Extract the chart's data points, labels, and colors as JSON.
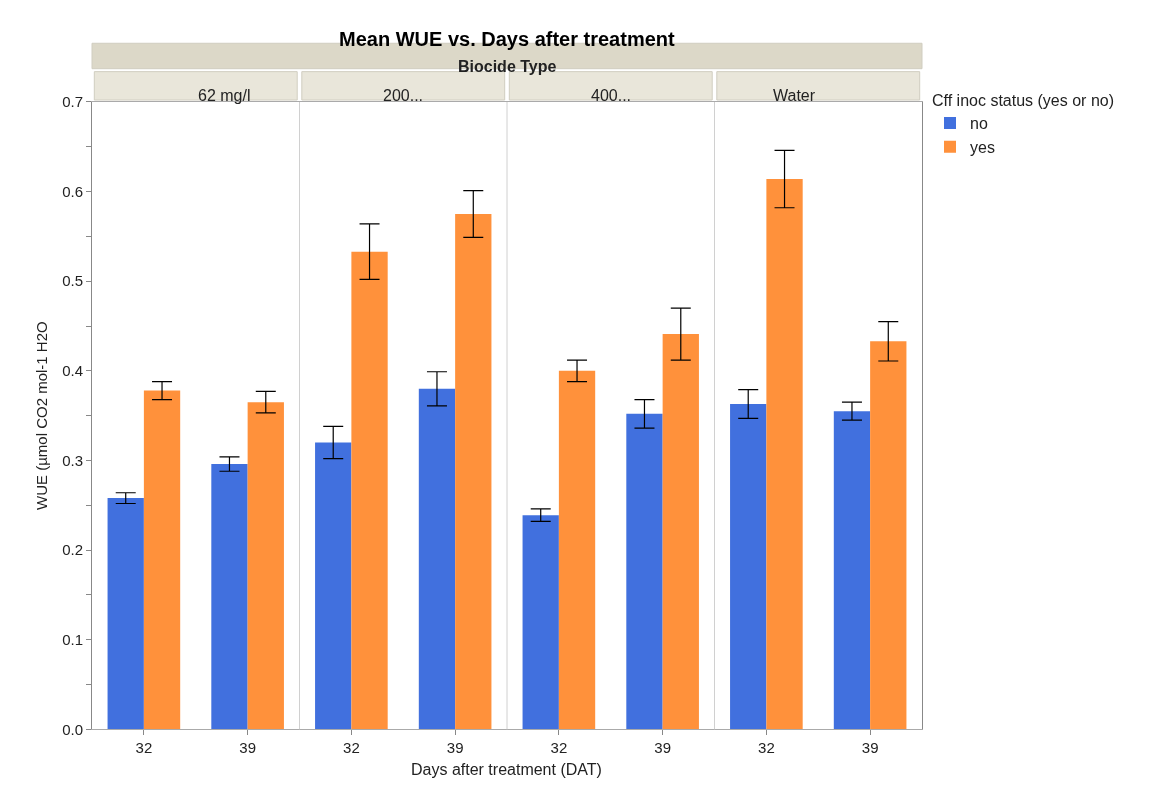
{
  "chart_data": {
    "type": "bar",
    "title": "Mean WUE vs. Days after treatment",
    "annotations": [
      "Biocide Type",
      "62 mg/l",
      "200...",
      "400...",
      "Water"
    ],
    "xlabel": "Days after treatment (DAT)",
    "ylabel": "WUE (µmol CO2 mol-1 H2O",
    "legend": "right",
    "legend_title": "Cff inoc status (yes or no)",
    "categories": [
      "32",
      "39",
      "32",
      "39",
      "32",
      "39",
      "32",
      "39"
    ],
    "series": [
      {
        "name": "no",
        "color": "#4170de",
        "values": [
          0.258,
          0.296,
          0.32,
          0.38,
          0.239,
          0.352,
          0.363,
          0.355
        ],
        "errors": [
          0.006,
          0.008,
          0.018,
          0.019,
          0.007,
          0.016,
          0.016,
          0.01
        ]
      },
      {
        "name": "yes",
        "color": "#ff913b",
        "values": [
          0.378,
          0.365,
          0.533,
          0.575,
          0.4,
          0.441,
          0.614,
          0.433
        ],
        "errors": [
          0.01,
          0.012,
          0.031,
          0.026,
          0.012,
          0.029,
          0.032,
          0.022
        ]
      }
    ],
    "ylim": [
      0,
      0.7
    ],
    "yticks": [
      {
        "value": 0,
        "label": "0.0"
      },
      {
        "value": 0.05,
        "label": null
      },
      0.1,
      {
        "value": 0.15,
        "label": null
      },
      0.2,
      {
        "value": 0.25,
        "label": null
      },
      0.3,
      {
        "value": 0.35,
        "label": null
      },
      0.4,
      {
        "value": 0.45,
        "label": null
      },
      0.5,
      {
        "value": 0.55,
        "label": null
      },
      0.6,
      {
        "value": 0.65,
        "label": null
      },
      0.7
    ]
  }
}
